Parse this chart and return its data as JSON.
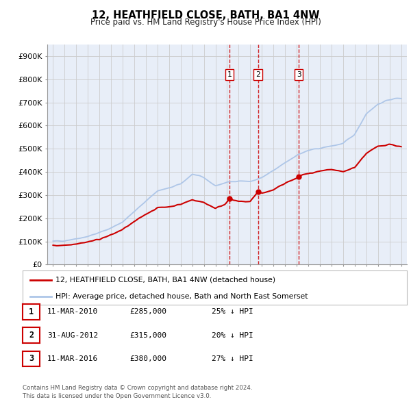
{
  "title": "12, HEATHFIELD CLOSE, BATH, BA1 4NW",
  "subtitle": "Price paid vs. HM Land Registry's House Price Index (HPI)",
  "xlim": [
    1994.5,
    2025.5
  ],
  "ylim": [
    0,
    950000
  ],
  "yticks": [
    0,
    100000,
    200000,
    300000,
    400000,
    500000,
    600000,
    700000,
    800000,
    900000
  ],
  "ytick_labels": [
    "£0",
    "£100K",
    "£200K",
    "£300K",
    "£400K",
    "£500K",
    "£600K",
    "£700K",
    "£800K",
    "£900K"
  ],
  "xticks": [
    1995,
    1996,
    1997,
    1998,
    1999,
    2000,
    2001,
    2002,
    2003,
    2004,
    2005,
    2006,
    2007,
    2008,
    2009,
    2010,
    2011,
    2012,
    2013,
    2014,
    2015,
    2016,
    2017,
    2018,
    2019,
    2020,
    2021,
    2022,
    2023,
    2024,
    2025
  ],
  "hpi_color": "#aec6e8",
  "price_color": "#cc0000",
  "sale_dot_color": "#cc0000",
  "vline_color": "#cc0000",
  "grid_color": "#cccccc",
  "plot_bg_color": "#e8eef8",
  "sales": [
    {
      "year": 2010.19,
      "price": 285000,
      "label": "1"
    },
    {
      "year": 2012.66,
      "price": 315000,
      "label": "2"
    },
    {
      "year": 2016.19,
      "price": 380000,
      "label": "3"
    }
  ],
  "legend_entries": [
    {
      "label": "12, HEATHFIELD CLOSE, BATH, BA1 4NW (detached house)",
      "color": "#cc0000"
    },
    {
      "label": "HPI: Average price, detached house, Bath and North East Somerset",
      "color": "#aec6e8"
    }
  ],
  "table_rows": [
    {
      "num": "1",
      "date": "11-MAR-2010",
      "price": "£285,000",
      "pct": "25% ↓ HPI"
    },
    {
      "num": "2",
      "date": "31-AUG-2012",
      "price": "£315,000",
      "pct": "20% ↓ HPI"
    },
    {
      "num": "3",
      "date": "11-MAR-2016",
      "price": "£380,000",
      "pct": "27% ↓ HPI"
    }
  ],
  "footnote1": "Contains HM Land Registry data © Crown copyright and database right 2024.",
  "footnote2": "This data is licensed under the Open Government Licence v3.0.",
  "hpi_anchors_x": [
    1995,
    1996,
    1997,
    1998,
    1999,
    2000,
    2001,
    2002,
    2003,
    2004,
    2005,
    2006,
    2007,
    2008,
    2009,
    2010,
    2011,
    2012,
    2013,
    2014,
    2015,
    2016,
    2017,
    2018,
    2019,
    2020,
    2021,
    2022,
    2023,
    2024,
    2025
  ],
  "hpi_anchors_y": [
    100000,
    104000,
    112000,
    122000,
    138000,
    158000,
    185000,
    228000,
    275000,
    318000,
    330000,
    348000,
    390000,
    375000,
    340000,
    355000,
    362000,
    358000,
    375000,
    405000,
    440000,
    472000,
    492000,
    502000,
    512000,
    522000,
    562000,
    652000,
    692000,
    712000,
    720000
  ],
  "price_anchors_x": [
    1995,
    1996,
    1997,
    1998,
    1999,
    2000,
    2001,
    2002,
    2003,
    2004,
    2005,
    2006,
    2007,
    2008,
    2009,
    2009.8,
    2010.19,
    2010.5,
    2011,
    2012,
    2012.66,
    2013,
    2014,
    2015,
    2015.9,
    2016.19,
    2016.5,
    2017,
    2018,
    2019,
    2020,
    2021,
    2022,
    2023,
    2024,
    2025
  ],
  "price_anchors_y": [
    82000,
    84000,
    90000,
    98000,
    110000,
    128000,
    152000,
    185000,
    218000,
    245000,
    250000,
    260000,
    280000,
    268000,
    243000,
    260000,
    285000,
    278000,
    272000,
    272000,
    315000,
    308000,
    322000,
    352000,
    370000,
    380000,
    388000,
    392000,
    402000,
    410000,
    400000,
    420000,
    480000,
    510000,
    520000,
    508000
  ]
}
